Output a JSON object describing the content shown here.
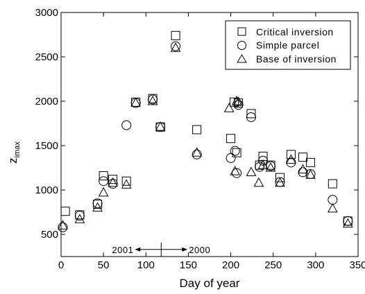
{
  "chart_data": {
    "type": "scatter",
    "xlabel": "Day of year",
    "ylabel": {
      "main": "z",
      "sub": "imax"
    },
    "xlim": [
      0,
      350
    ],
    "ylim": [
      250,
      3000
    ],
    "xticks": [
      0,
      50,
      100,
      150,
      200,
      250,
      300,
      350
    ],
    "yticks": [
      500,
      1000,
      1500,
      2000,
      2500,
      3000
    ],
    "legend_position": "top-right",
    "annotations": {
      "left": "2001",
      "right": "2000",
      "arrow_x": 118,
      "arrow_y": 330
    },
    "series": [
      {
        "name": "Critical inversion",
        "marker": "square",
        "points": [
          [
            5,
            760
          ],
          [
            22,
            720
          ],
          [
            43,
            840
          ],
          [
            50,
            1160
          ],
          [
            61,
            1120
          ],
          [
            77,
            1100
          ],
          [
            88,
            1990
          ],
          [
            108,
            2030
          ],
          [
            117,
            1710
          ],
          [
            135,
            2740
          ],
          [
            160,
            1680
          ],
          [
            200,
            1580
          ],
          [
            204,
            1990
          ],
          [
            207,
            1420
          ],
          [
            209,
            1980
          ],
          [
            224,
            1860
          ],
          [
            234,
            1280
          ],
          [
            238,
            1380
          ],
          [
            247,
            1280
          ],
          [
            258,
            1140
          ],
          [
            271,
            1400
          ],
          [
            285,
            1370
          ],
          [
            294,
            1310
          ],
          [
            320,
            1070
          ],
          [
            338,
            650
          ]
        ]
      },
      {
        "name": "Simple parcel",
        "marker": "circle",
        "points": [
          [
            2,
            580
          ],
          [
            22,
            710
          ],
          [
            43,
            850
          ],
          [
            50,
            1100
          ],
          [
            61,
            1070
          ],
          [
            77,
            1730
          ],
          [
            88,
            1980
          ],
          [
            108,
            2020
          ],
          [
            117,
            1710
          ],
          [
            135,
            2620
          ],
          [
            160,
            1400
          ],
          [
            200,
            1360
          ],
          [
            205,
            1440
          ],
          [
            207,
            1190
          ],
          [
            209,
            1960
          ],
          [
            224,
            1820
          ],
          [
            234,
            1260
          ],
          [
            238,
            1330
          ],
          [
            247,
            1270
          ],
          [
            258,
            1090
          ],
          [
            271,
            1310
          ],
          [
            285,
            1200
          ],
          [
            294,
            1180
          ],
          [
            320,
            890
          ],
          [
            338,
            650
          ]
        ]
      },
      {
        "name": "Base of inversion",
        "marker": "triangle",
        "points": [
          [
            2,
            600
          ],
          [
            22,
            670
          ],
          [
            43,
            800
          ],
          [
            50,
            970
          ],
          [
            61,
            1080
          ],
          [
            77,
            1060
          ],
          [
            88,
            1980
          ],
          [
            108,
            2000
          ],
          [
            117,
            1710
          ],
          [
            135,
            2600
          ],
          [
            160,
            1420
          ],
          [
            198,
            1920
          ],
          [
            205,
            1210
          ],
          [
            207,
            2000
          ],
          [
            209,
            1990
          ],
          [
            224,
            1200
          ],
          [
            233,
            1080
          ],
          [
            238,
            1280
          ],
          [
            247,
            1250
          ],
          [
            258,
            1080
          ],
          [
            271,
            1340
          ],
          [
            285,
            1230
          ],
          [
            294,
            1170
          ],
          [
            320,
            790
          ],
          [
            338,
            620
          ]
        ]
      }
    ]
  }
}
